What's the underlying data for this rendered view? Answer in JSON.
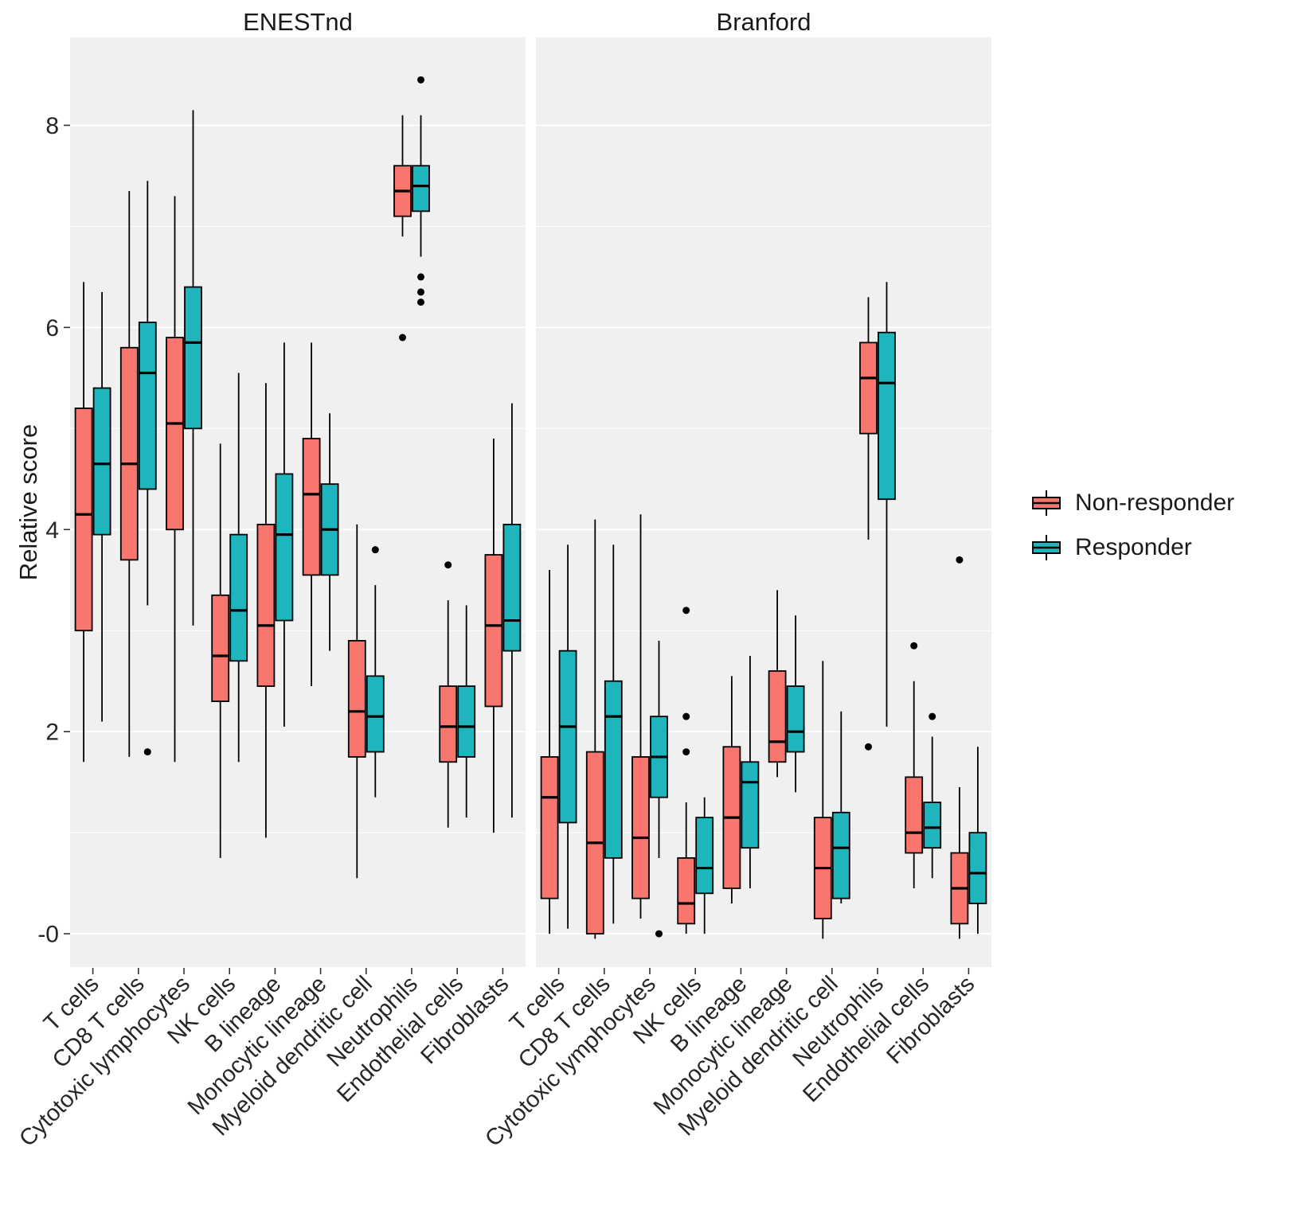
{
  "chart_data": {
    "type": "boxplot",
    "title": "",
    "ylabel": "Relative score",
    "ylim": [
      -0.33,
      8.87
    ],
    "ytick_values": [
      0,
      2,
      4,
      6,
      8
    ],
    "ytick_labels": [
      "-0",
      "2",
      "4",
      "6",
      "8"
    ],
    "y_minor": [
      1,
      3,
      5,
      7
    ],
    "grid": "on",
    "panel_background": "#F0F0F0",
    "legend_position": "right",
    "categories": [
      "T cells",
      "CD8 T cells",
      "Cytotoxic lymphocytes",
      "NK cells",
      "B lineage",
      "Monocytic lineage",
      "Myeloid dendritic cell",
      "Neutrophils",
      "Endothelial cells",
      "Fibroblasts"
    ],
    "series": [
      {
        "name": "Non-responder",
        "key": "non_responder",
        "color": "#F8766D"
      },
      {
        "name": "Responder",
        "key": "responder",
        "color": "#1FB5BD"
      }
    ],
    "facets": [
      {
        "label": "ENESTnd",
        "boxes": [
          {
            "category": "T cells",
            "non_responder": {
              "lo": 1.7,
              "q1": 3.0,
              "med": 4.15,
              "q3": 5.2,
              "hi": 6.45,
              "out": []
            },
            "responder": {
              "lo": 2.1,
              "q1": 3.95,
              "med": 4.65,
              "q3": 5.4,
              "hi": 6.35,
              "out": []
            }
          },
          {
            "category": "CD8 T cells",
            "non_responder": {
              "lo": 1.75,
              "q1": 3.7,
              "med": 4.65,
              "q3": 5.8,
              "hi": 7.35,
              "out": []
            },
            "responder": {
              "lo": 3.25,
              "q1": 4.4,
              "med": 5.55,
              "q3": 6.05,
              "hi": 7.45,
              "out": [
                1.8
              ]
            }
          },
          {
            "category": "Cytotoxic lymphocytes",
            "non_responder": {
              "lo": 1.7,
              "q1": 4.0,
              "med": 5.05,
              "q3": 5.9,
              "hi": 7.3,
              "out": []
            },
            "responder": {
              "lo": 3.05,
              "q1": 5.0,
              "med": 5.85,
              "q3": 6.4,
              "hi": 8.15,
              "out": []
            }
          },
          {
            "category": "NK cells",
            "non_responder": {
              "lo": 0.75,
              "q1": 2.3,
              "med": 2.75,
              "q3": 3.35,
              "hi": 4.85,
              "out": []
            },
            "responder": {
              "lo": 1.7,
              "q1": 2.7,
              "med": 3.2,
              "q3": 3.95,
              "hi": 5.55,
              "out": []
            }
          },
          {
            "category": "B lineage",
            "non_responder": {
              "lo": 0.95,
              "q1": 2.45,
              "med": 3.05,
              "q3": 4.05,
              "hi": 5.45,
              "out": []
            },
            "responder": {
              "lo": 2.05,
              "q1": 3.1,
              "med": 3.95,
              "q3": 4.55,
              "hi": 5.85,
              "out": []
            }
          },
          {
            "category": "Monocytic lineage",
            "non_responder": {
              "lo": 2.45,
              "q1": 3.55,
              "med": 4.35,
              "q3": 4.9,
              "hi": 5.85,
              "out": []
            },
            "responder": {
              "lo": 2.8,
              "q1": 3.55,
              "med": 4.0,
              "q3": 4.45,
              "hi": 5.15,
              "out": []
            }
          },
          {
            "category": "Myeloid dendritic cell",
            "non_responder": {
              "lo": 0.55,
              "q1": 1.75,
              "med": 2.2,
              "q3": 2.9,
              "hi": 4.05,
              "out": []
            },
            "responder": {
              "lo": 1.35,
              "q1": 1.8,
              "med": 2.15,
              "q3": 2.55,
              "hi": 3.45,
              "out": [
                3.8
              ]
            }
          },
          {
            "category": "Neutrophils",
            "non_responder": {
              "lo": 6.9,
              "q1": 7.1,
              "med": 7.35,
              "q3": 7.6,
              "hi": 8.1,
              "out": [
                5.9
              ]
            },
            "responder": {
              "lo": 6.7,
              "q1": 7.15,
              "med": 7.4,
              "q3": 7.6,
              "hi": 8.1,
              "out": [
                8.45,
                6.5,
                6.35,
                6.25
              ]
            }
          },
          {
            "category": "Endothelial cells",
            "non_responder": {
              "lo": 1.05,
              "q1": 1.7,
              "med": 2.05,
              "q3": 2.45,
              "hi": 3.3,
              "out": [
                3.65
              ]
            },
            "responder": {
              "lo": 1.15,
              "q1": 1.75,
              "med": 2.05,
              "q3": 2.45,
              "hi": 3.25,
              "out": []
            }
          },
          {
            "category": "Fibroblasts",
            "non_responder": {
              "lo": 1.0,
              "q1": 2.25,
              "med": 3.05,
              "q3": 3.75,
              "hi": 4.9,
              "out": []
            },
            "responder": {
              "lo": 1.15,
              "q1": 2.8,
              "med": 3.1,
              "q3": 4.05,
              "hi": 5.25,
              "out": []
            }
          }
        ]
      },
      {
        "label": "Branford",
        "boxes": [
          {
            "category": "T cells",
            "non_responder": {
              "lo": 0.0,
              "q1": 0.35,
              "med": 1.35,
              "q3": 1.75,
              "hi": 3.6,
              "out": []
            },
            "responder": {
              "lo": 0.05,
              "q1": 1.1,
              "med": 2.05,
              "q3": 2.8,
              "hi": 3.85,
              "out": []
            }
          },
          {
            "category": "CD8 T cells",
            "non_responder": {
              "lo": -0.05,
              "q1": 0.0,
              "med": 0.9,
              "q3": 1.8,
              "hi": 4.1,
              "out": []
            },
            "responder": {
              "lo": 0.1,
              "q1": 0.75,
              "med": 2.15,
              "q3": 2.5,
              "hi": 3.85,
              "out": []
            }
          },
          {
            "category": "Cytotoxic lymphocytes",
            "non_responder": {
              "lo": 0.15,
              "q1": 0.35,
              "med": 0.95,
              "q3": 1.75,
              "hi": 4.15,
              "out": []
            },
            "responder": {
              "lo": 0.75,
              "q1": 1.35,
              "med": 1.75,
              "q3": 2.15,
              "hi": 2.9,
              "out": [
                0.0
              ]
            }
          },
          {
            "category": "NK cells",
            "non_responder": {
              "lo": 0.0,
              "q1": 0.1,
              "med": 0.3,
              "q3": 0.75,
              "hi": 1.3,
              "out": [
                3.2,
                2.15,
                1.8
              ]
            },
            "responder": {
              "lo": 0.0,
              "q1": 0.4,
              "med": 0.65,
              "q3": 1.15,
              "hi": 1.35,
              "out": []
            }
          },
          {
            "category": "B lineage",
            "non_responder": {
              "lo": 0.3,
              "q1": 0.45,
              "med": 1.15,
              "q3": 1.85,
              "hi": 2.55,
              "out": []
            },
            "responder": {
              "lo": 0.45,
              "q1": 0.85,
              "med": 1.5,
              "q3": 1.7,
              "hi": 2.75,
              "out": []
            }
          },
          {
            "category": "Monocytic lineage",
            "non_responder": {
              "lo": 1.55,
              "q1": 1.7,
              "med": 1.9,
              "q3": 2.6,
              "hi": 3.4,
              "out": []
            },
            "responder": {
              "lo": 1.4,
              "q1": 1.8,
              "med": 2.0,
              "q3": 2.45,
              "hi": 3.15,
              "out": []
            }
          },
          {
            "category": "Myeloid dendritic cell",
            "non_responder": {
              "lo": -0.05,
              "q1": 0.15,
              "med": 0.65,
              "q3": 1.15,
              "hi": 2.7,
              "out": []
            },
            "responder": {
              "lo": 0.3,
              "q1": 0.35,
              "med": 0.85,
              "q3": 1.2,
              "hi": 2.2,
              "out": []
            }
          },
          {
            "category": "Neutrophils",
            "non_responder": {
              "lo": 3.9,
              "q1": 4.95,
              "med": 5.5,
              "q3": 5.85,
              "hi": 6.3,
              "out": [
                1.85
              ]
            },
            "responder": {
              "lo": 2.05,
              "q1": 4.3,
              "med": 5.45,
              "q3": 5.95,
              "hi": 6.45,
              "out": []
            }
          },
          {
            "category": "Endothelial cells",
            "non_responder": {
              "lo": 0.45,
              "q1": 0.8,
              "med": 1.0,
              "q3": 1.55,
              "hi": 2.5,
              "out": [
                2.85
              ]
            },
            "responder": {
              "lo": 0.55,
              "q1": 0.85,
              "med": 1.05,
              "q3": 1.3,
              "hi": 1.95,
              "out": [
                2.15
              ]
            }
          },
          {
            "category": "Fibroblasts",
            "non_responder": {
              "lo": -0.05,
              "q1": 0.1,
              "med": 0.45,
              "q3": 0.8,
              "hi": 1.45,
              "out": [
                3.7
              ]
            },
            "responder": {
              "lo": 0.0,
              "q1": 0.3,
              "med": 0.6,
              "q3": 1.0,
              "hi": 1.85,
              "out": []
            }
          }
        ]
      }
    ]
  }
}
